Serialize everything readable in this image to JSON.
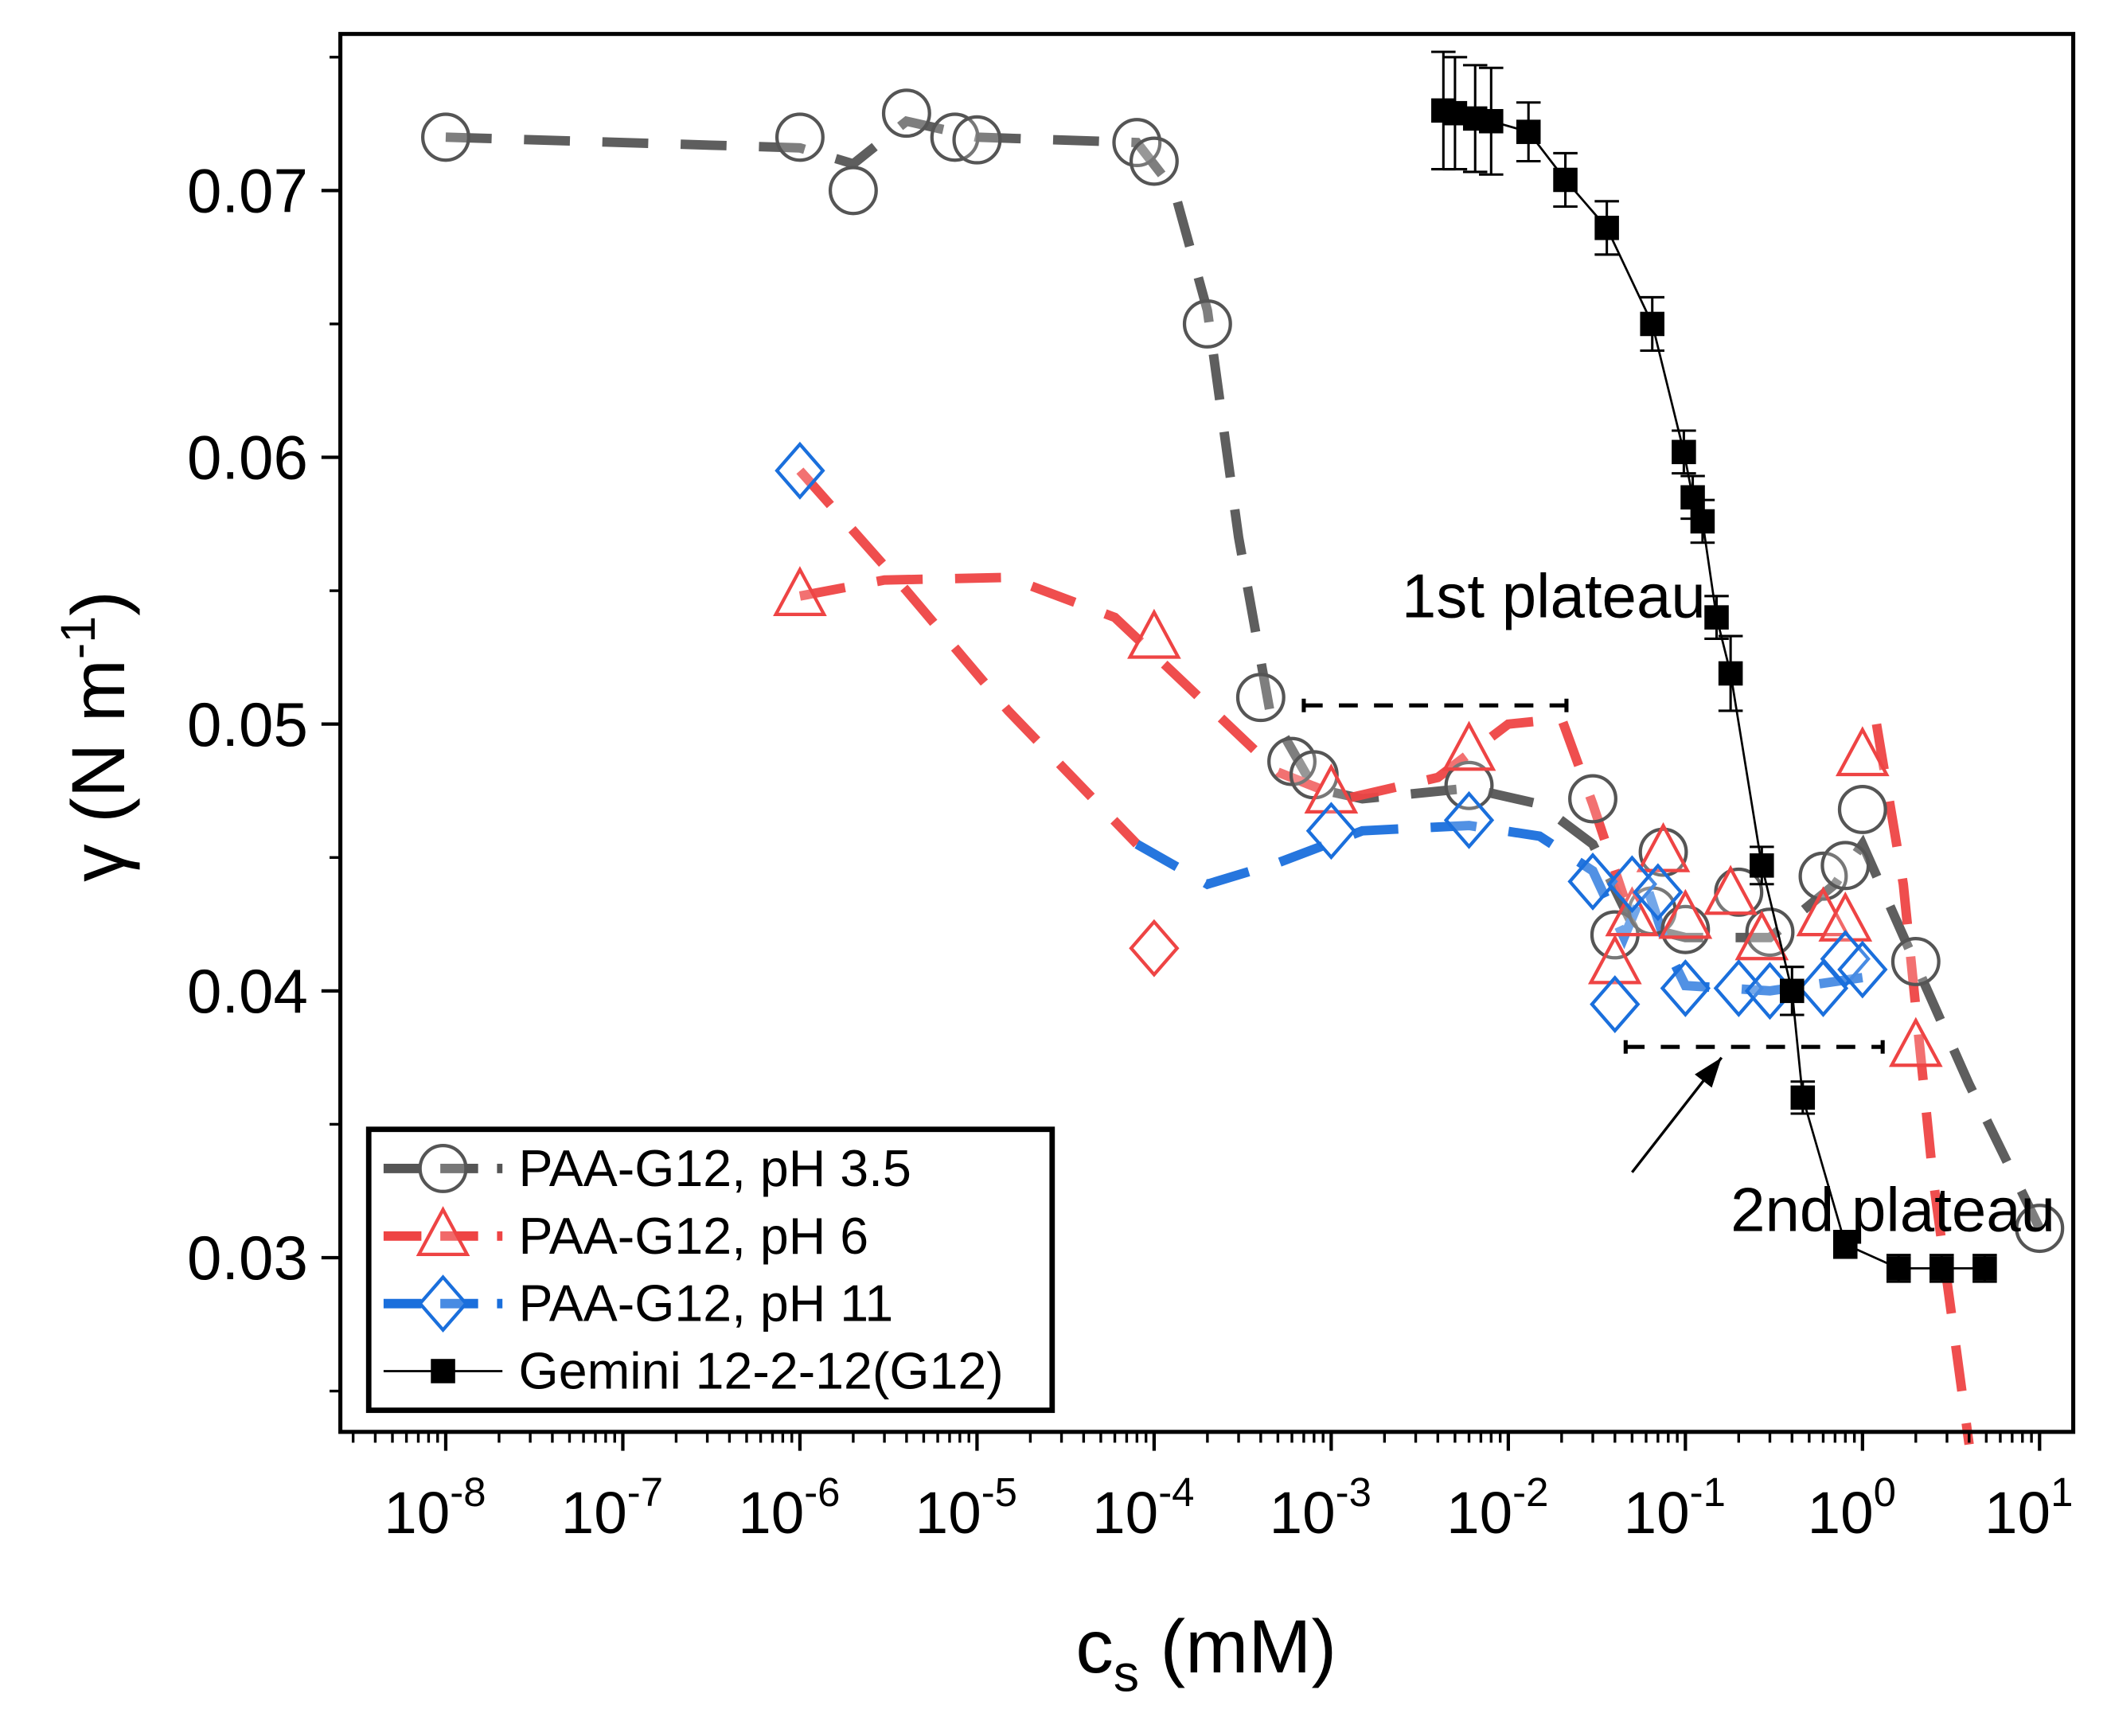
{
  "chart_data": {
    "type": "scatter",
    "xlabel": "c",
    "xlabel_sub": "s",
    "xlabel_unit": " (mM)",
    "ylabel": "γ (N m",
    "ylabel_sup": "-1",
    "ylabel_end": ")",
    "xscale": "log",
    "xlim_log10": [
      -8.595,
      1.19
    ],
    "ylim": [
      0.02347,
      0.07587
    ],
    "xticks": [
      {
        "base": "10",
        "exp": "-8",
        "v": -8
      },
      {
        "base": "10",
        "exp": "-7",
        "v": -7
      },
      {
        "base": "10",
        "exp": "-6",
        "v": -6
      },
      {
        "base": "10",
        "exp": "-5",
        "v": -5
      },
      {
        "base": "10",
        "exp": "-4",
        "v": -4
      },
      {
        "base": "10",
        "exp": "-3",
        "v": -3
      },
      {
        "base": "10",
        "exp": "-2",
        "v": -2
      },
      {
        "base": "10",
        "exp": "-1",
        "v": -1
      },
      {
        "base": "10",
        "exp": "0",
        "v": 0
      },
      {
        "base": "10",
        "exp": "1",
        "v": 1
      }
    ],
    "yticks": [
      {
        "label": "0.03",
        "v": 0.03
      },
      {
        "label": "0.04",
        "v": 0.04
      },
      {
        "label": "0.05",
        "v": 0.05
      },
      {
        "label": "0.06",
        "v": 0.06
      },
      {
        "label": "0.07",
        "v": 0.07
      }
    ],
    "legend_position": "bottom-left",
    "series": [
      {
        "name": "PAA-G12, pH 3.5",
        "marker": "circle",
        "color": "#555555",
        "x": [
          1e-08,
          1e-06,
          2e-06,
          4e-06,
          7.5e-06,
          1e-05,
          8e-05,
          0.0001,
          0.0002,
          0.0004,
          0.0006,
          0.0008,
          0.006,
          0.03,
          0.04,
          0.065,
          0.075,
          0.1,
          0.2,
          0.3,
          0.6,
          0.8,
          1.0,
          2.0,
          10
        ],
        "y": [
          0.072,
          0.072,
          0.07,
          0.0729,
          0.072,
          0.0719,
          0.0718,
          0.0711,
          0.065,
          0.051,
          0.0486,
          0.0481,
          0.0477,
          0.0472,
          0.0421,
          0.043,
          0.0452,
          0.0423,
          0.0437,
          0.0422,
          0.0443,
          0.0447,
          0.0468,
          0.0411,
          0.0311
        ],
        "fit": [
          [
            [
              1e-08,
              0.072
            ],
            [
              1e-06,
              0.0716
            ],
            [
              2e-06,
              0.071
            ],
            [
              4e-06,
              0.0726
            ],
            [
              1e-05,
              0.072
            ],
            [
              8e-05,
              0.0718
            ],
            [
              0.00013,
              0.07
            ],
            [
              0.0002,
              0.0655
            ],
            [
              0.0003,
              0.057
            ],
            [
              0.00045,
              0.0505
            ],
            [
              0.0008,
              0.0476
            ],
            [
              0.0015,
              0.0472
            ],
            [
              0.006,
              0.0476
            ],
            [
              0.015,
              0.047
            ],
            [
              0.03,
              0.0455
            ],
            [
              0.05,
              0.0425
            ],
            [
              0.1,
              0.042
            ],
            [
              0.3,
              0.042
            ],
            [
              0.7,
              0.044
            ],
            [
              1.0,
              0.0455
            ],
            [
              2.0,
              0.041
            ],
            [
              4.0,
              0.0365
            ],
            [
              10,
              0.0311
            ]
          ]
        ]
      },
      {
        "name": "PAA-G12, pH 6",
        "marker": "triangle",
        "color": "#ee4444",
        "x": [
          1e-06,
          0.0001,
          0.001,
          0.006,
          0.04,
          0.05,
          0.075,
          0.1,
          0.18,
          0.27,
          0.6,
          0.8,
          1.0,
          2.0
        ],
        "y": [
          0.0548,
          0.0532,
          0.0474,
          0.049,
          0.041,
          0.0428,
          0.0452,
          0.0427,
          0.0436,
          0.0419,
          0.0428,
          0.0426,
          0.0488,
          0.0379
        ],
        "fit": [
          [
            [
              1e-06,
              0.0548
            ],
            [
              3e-06,
              0.0554
            ],
            [
              1.5e-05,
              0.0555
            ],
            [
              6e-05,
              0.054
            ],
            [
              0.00015,
              0.0515
            ],
            [
              0.0005,
              0.0482
            ],
            [
              0.0012,
              0.0472
            ],
            [
              0.004,
              0.048
            ],
            [
              0.01,
              0.05
            ],
            [
              0.02,
              0.0502
            ],
            [
              0.03,
              0.047
            ],
            [
              0.045,
              0.0435
            ]
          ],
          [
            [
              1e-06,
              0.0595
            ],
            [
              4e-06,
              0.055
            ],
            [
              1.5e-05,
              0.0505
            ],
            [
              8e-05,
              0.0455
            ]
          ],
          [
            [
              1.2,
              0.05
            ],
            [
              1.7,
              0.044
            ],
            [
              2.5,
              0.033
            ],
            [
              4.0,
              0.023
            ]
          ]
        ]
      },
      {
        "name": "PAA-G12, pH 11",
        "marker": "diamond",
        "color": "#1a6fdc",
        "x": [
          1e-06,
          0.0001,
          0.001,
          0.006,
          0.03,
          0.04,
          0.05,
          0.07,
          0.1,
          0.2,
          0.3,
          0.6,
          0.8,
          1.0
        ],
        "y": [
          0.0595,
          0.0416,
          0.046,
          0.0464,
          0.0441,
          0.0395,
          0.044,
          0.0437,
          0.0401,
          0.0401,
          0.04,
          0.0401,
          0.0412,
          0.0408
        ],
        "point_colors": [
          "#1a6fdc",
          "#ee4444",
          "#1a6fdc",
          "#1a6fdc",
          "#1a6fdc",
          "#1a6fdc",
          "#1a6fdc",
          "#1a6fdc",
          "#1a6fdc",
          "#1a6fdc",
          "#1a6fdc",
          "#1a6fdc",
          "#1a6fdc",
          "#1a6fdc"
        ],
        "fit": [
          [
            [
              8e-05,
              0.0455
            ],
            [
              0.0002,
              0.044
            ],
            [
              0.0005,
              0.0448
            ],
            [
              0.0015,
              0.046
            ],
            [
              0.006,
              0.0462
            ],
            [
              0.015,
              0.0458
            ],
            [
              0.03,
              0.0445
            ],
            [
              0.045,
              0.042
            ],
            [
              0.06,
              0.044
            ],
            [
              0.08,
              0.0415
            ],
            [
              0.1,
              0.0402
            ],
            [
              0.3,
              0.04
            ],
            [
              1.0,
              0.0405
            ]
          ]
        ]
      },
      {
        "name": "Gemini 12-2-12(G12)",
        "marker": "square",
        "color": "#000000",
        "x": [
          0.0043,
          0.005,
          0.0065,
          0.008,
          0.013,
          0.021,
          0.036,
          0.065,
          0.098,
          0.11,
          0.125,
          0.15,
          0.18,
          0.27,
          0.4,
          0.46,
          0.8,
          1.6,
          2.8,
          4.9
        ],
        "y": [
          0.073,
          0.0729,
          0.0727,
          0.0726,
          0.0722,
          0.0704,
          0.0686,
          0.065,
          0.0602,
          0.0585,
          0.0576,
          0.054,
          0.0519,
          0.0447,
          0.04,
          0.036,
          0.0305,
          0.0296,
          0.0296,
          0.0296
        ],
        "yerr": [
          0.0022,
          0.0021,
          0.002,
          0.002,
          0.0011,
          0.001,
          0.001,
          0.001,
          0.0008,
          0.0008,
          0.0008,
          0.0008,
          0.0014,
          0.0007,
          0.0009,
          0.0006,
          0.0005,
          0.0005,
          0.0005,
          0.0005
        ]
      }
    ],
    "annotations": [
      {
        "text": "1st plateau",
        "x": 0.0025,
        "y": 0.054,
        "bracket": [
          [
            0.0007,
            0.0213
          ],
          0.0507
        ]
      },
      {
        "text": "2nd plateau",
        "x": 0.18,
        "y": 0.031,
        "bracket": [
          [
            0.046,
            1.3
          ],
          0.0379
        ],
        "arrow_from": [
          0.05,
          0.0332
        ],
        "arrow_to": [
          0.16,
          0.0375
        ]
      }
    ]
  }
}
